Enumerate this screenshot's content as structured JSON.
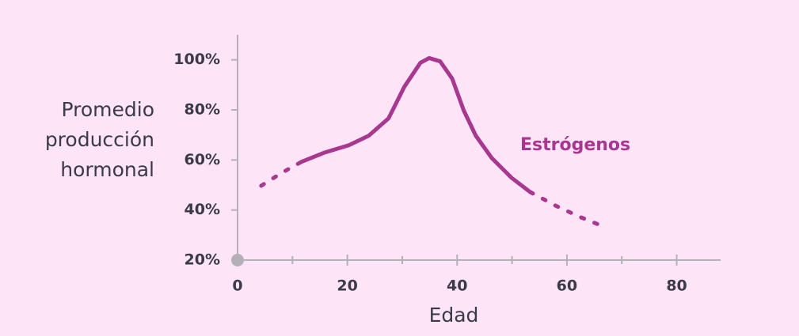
{
  "chart_data": {
    "type": "line",
    "ylabel": [
      "Promedio",
      "producción",
      "hormonal"
    ],
    "xlabel": "Edad",
    "xlim": [
      0,
      88
    ],
    "xticks": [
      0,
      20,
      40,
      60,
      80
    ],
    "xminorticks": [
      10,
      30,
      50,
      70
    ],
    "ylim": [
      20,
      110
    ],
    "yticks": [
      {
        "value": 20,
        "label": "20%"
      },
      {
        "value": 40,
        "label": "40%"
      },
      {
        "value": 60,
        "label": "60%"
      },
      {
        "value": 80,
        "label": "80%"
      },
      {
        "value": 100,
        "label": "100%"
      }
    ],
    "axis_color": "#b3b0b8",
    "series": [
      {
        "name": "Estrógenos",
        "color": "#a8378f",
        "x": [
          4.3,
          8.0,
          11.6,
          15.9,
          20.3,
          23.9,
          27.5,
          30.4,
          33.3,
          34.9,
          36.9,
          39.1,
          41.2,
          43.4,
          46.3,
          49.9,
          53.3,
          57.9,
          62.2,
          65.8
        ],
        "values": [
          49.7,
          54.8,
          59.2,
          63.0,
          65.9,
          69.7,
          76.6,
          89.3,
          98.8,
          100.7,
          99.4,
          92.5,
          79.8,
          69.7,
          60.8,
          52.9,
          47.2,
          41.8,
          37.4,
          34.2
        ],
        "style": [
          "dotted",
          "dotted",
          "dotted",
          "solid",
          "solid",
          "solid",
          "solid",
          "solid",
          "solid",
          "solid",
          "solid",
          "solid",
          "solid",
          "solid",
          "solid",
          "solid",
          "solid",
          "dotted",
          "dotted",
          "dotted"
        ]
      }
    ]
  }
}
